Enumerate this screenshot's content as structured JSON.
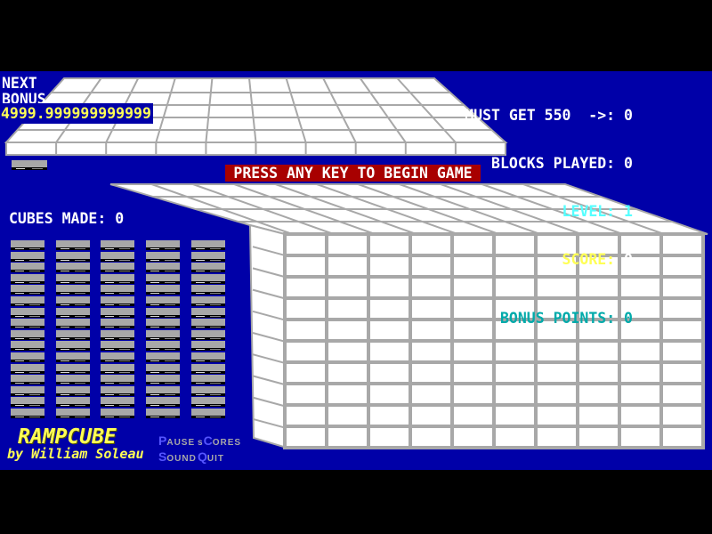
{
  "palette": {
    "background_black": "#000000",
    "field_blue": "#0000A8",
    "banner_red": "#A80000",
    "text_white": "#FFFFFF",
    "text_yellow": "#FFFF55",
    "text_bright_cyan": "#55FFFF",
    "text_dim_cyan": "#00AAAA",
    "block_gray": "#A8A8A8",
    "hotkey_blue": "#5555FF"
  },
  "hud_left": {
    "next_label": "NEXT",
    "bonus_label": "BONUS",
    "bonus_value": "4999.999999999999"
  },
  "hud_right": {
    "must_get_label": "MUST GET 550  ->:",
    "must_get_value": " 0",
    "blocks_played_label": "BLOCKS PLAYED:",
    "blocks_played_value": " 0",
    "level_label": "LEVEL:",
    "level_value": " 1",
    "score_label": "SCORE:",
    "score_value": " 0",
    "bonus_points_label": "BONUS POINTS:",
    "bonus_points_value": " 0"
  },
  "banner": {
    "text": "PRESS ANY KEY TO BEGIN GAME"
  },
  "cubes_made": {
    "label": "CUBES MADE:",
    "value": " 0"
  },
  "title": {
    "game": "RAMPCUBE",
    "byline": "by William Soleau"
  },
  "menu": {
    "items": [
      {
        "pre": "",
        "key": "P",
        "rest": "AUSE"
      },
      {
        "pre": "s",
        "key": "C",
        "rest": "ORES"
      },
      {
        "pre": "",
        "key": "S",
        "rest": "OUND"
      },
      {
        "pre": "",
        "key": "Q",
        "rest": "UIT"
      }
    ]
  },
  "playfield": {
    "stack_columns": 5,
    "blocks_per_column": 16,
    "wall_cols": 10,
    "wall_rows": 10,
    "has_next_block": true
  }
}
